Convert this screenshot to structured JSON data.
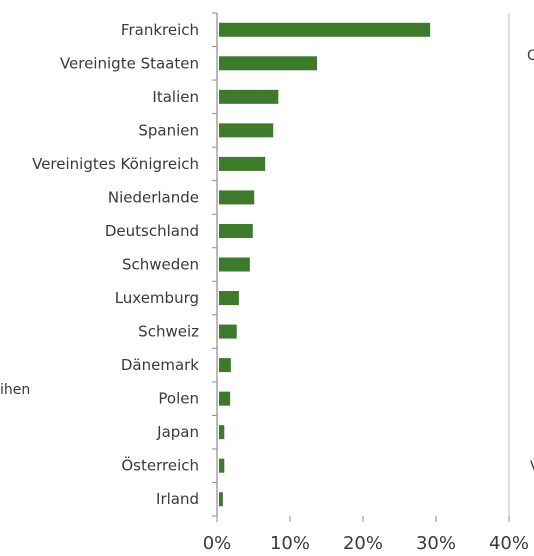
{
  "chart_data": {
    "type": "bar",
    "orientation": "horizontal",
    "categories": [
      "Frankreich",
      "Vereinigte Staaten",
      "Italien",
      "Spanien",
      "Vereinigtes Königreich",
      "Niederlande",
      "Deutschland",
      "Schweden",
      "Luxemburg",
      "Schweiz",
      "Dänemark",
      "Polen",
      "Japan",
      "Österreich",
      "Irland"
    ],
    "values": [
      29.2,
      13.7,
      8.4,
      7.7,
      6.6,
      5.1,
      4.9,
      4.5,
      3.0,
      2.7,
      1.9,
      1.8,
      1.0,
      1.0,
      0.8
    ],
    "xlim": [
      0,
      40
    ],
    "xticks": [
      0,
      10,
      20,
      30,
      40
    ],
    "xtick_labels": [
      "0%",
      "10%",
      "20%",
      "30%",
      "40%"
    ],
    "bar_color": "#3d7a2c",
    "grid": false,
    "title": "",
    "xlabel": "",
    "ylabel": ""
  },
  "fragments": {
    "left": "ihen",
    "right_top": "C",
    "right_bottom": "V"
  }
}
